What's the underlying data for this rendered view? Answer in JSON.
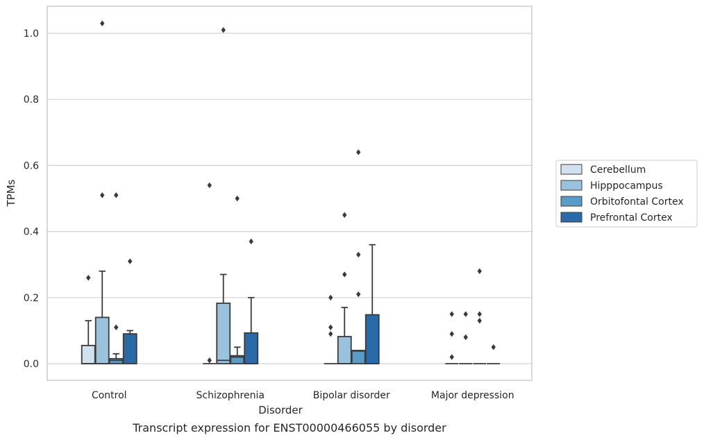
{
  "chart_data": {
    "type": "box",
    "xlabel": "Disorder",
    "ylabel": "TPMs",
    "caption": "Transcript expression for ENST00000466055 by disorder",
    "ylim": [
      -0.05,
      1.08
    ],
    "yticks": [
      0.0,
      0.2,
      0.4,
      0.6,
      0.8,
      1.0
    ],
    "ytick_labels": [
      "0.0",
      "0.2",
      "0.4",
      "0.6",
      "0.8",
      "1.0"
    ],
    "grid": "horizontal",
    "legend_position": "right",
    "categories": [
      "Control",
      "Schizophrenia",
      "Bipolar disorder",
      "Major depression"
    ],
    "series": [
      {
        "name": "Cerebellum",
        "color": "#d2e1f0",
        "boxes": [
          {
            "q1": 0.0,
            "median": 0.0,
            "q3": 0.055,
            "whisker_low": 0.0,
            "whisker_high": 0.13,
            "outliers": [
              0.26
            ]
          },
          {
            "q1": 0.0,
            "median": 0.0,
            "q3": 0.0,
            "whisker_low": 0.0,
            "whisker_high": 0.0,
            "outliers": [
              0.01,
              0.54
            ]
          },
          {
            "q1": 0.0,
            "median": 0.0,
            "q3": 0.0,
            "whisker_low": 0.0,
            "whisker_high": 0.0,
            "outliers": [
              0.09,
              0.11,
              0.2
            ]
          },
          {
            "q1": 0.0,
            "median": 0.0,
            "q3": 0.0,
            "whisker_low": 0.0,
            "whisker_high": 0.0,
            "outliers": [
              0.02,
              0.09,
              0.15
            ]
          }
        ]
      },
      {
        "name": "Hipppocampus",
        "color": "#9ac2dc",
        "boxes": [
          {
            "q1": 0.0,
            "median": 0.0,
            "q3": 0.14,
            "whisker_low": 0.0,
            "whisker_high": 0.28,
            "outliers": [
              0.51,
              1.03
            ]
          },
          {
            "q1": 0.0,
            "median": 0.01,
            "q3": 0.183,
            "whisker_low": 0.0,
            "whisker_high": 0.27,
            "outliers": [
              1.01
            ]
          },
          {
            "q1": 0.0,
            "median": 0.0,
            "q3": 0.082,
            "whisker_low": 0.0,
            "whisker_high": 0.17,
            "outliers": [
              0.27,
              0.45
            ]
          },
          {
            "q1": 0.0,
            "median": 0.0,
            "q3": 0.0,
            "whisker_low": 0.0,
            "whisker_high": 0.0,
            "outliers": [
              0.08,
              0.15
            ]
          }
        ]
      },
      {
        "name": "Orbitofontal Cortex",
        "color": "#5a9cc8",
        "boxes": [
          {
            "q1": 0.0,
            "median": 0.01,
            "q3": 0.015,
            "whisker_low": 0.0,
            "whisker_high": 0.03,
            "outliers": [
              0.11,
              0.51
            ]
          },
          {
            "q1": 0.0,
            "median": 0.02,
            "q3": 0.024,
            "whisker_low": 0.0,
            "whisker_high": 0.05,
            "outliers": [
              0.5
            ]
          },
          {
            "q1": 0.0,
            "median": 0.038,
            "q3": 0.04,
            "whisker_low": 0.0,
            "whisker_high": 0.04,
            "outliers": [
              0.21,
              0.33,
              0.64
            ]
          },
          {
            "q1": 0.0,
            "median": 0.0,
            "q3": 0.0,
            "whisker_low": 0.0,
            "whisker_high": 0.0,
            "outliers": [
              0.13,
              0.15,
              0.28
            ]
          }
        ]
      },
      {
        "name": "Prefrontal Cortex",
        "color": "#2a6aa8",
        "boxes": [
          {
            "q1": 0.0,
            "median": 0.09,
            "q3": 0.09,
            "whisker_low": 0.0,
            "whisker_high": 0.1,
            "outliers": [
              0.31
            ]
          },
          {
            "q1": 0.0,
            "median": 0.0,
            "q3": 0.093,
            "whisker_low": 0.0,
            "whisker_high": 0.2,
            "outliers": [
              0.37
            ]
          },
          {
            "q1": 0.0,
            "median": 0.0,
            "q3": 0.148,
            "whisker_low": 0.0,
            "whisker_high": 0.36,
            "outliers": []
          },
          {
            "q1": 0.0,
            "median": 0.0,
            "q3": 0.0,
            "whisker_low": 0.0,
            "whisker_high": 0.0,
            "outliers": [
              0.05
            ]
          }
        ]
      }
    ]
  }
}
